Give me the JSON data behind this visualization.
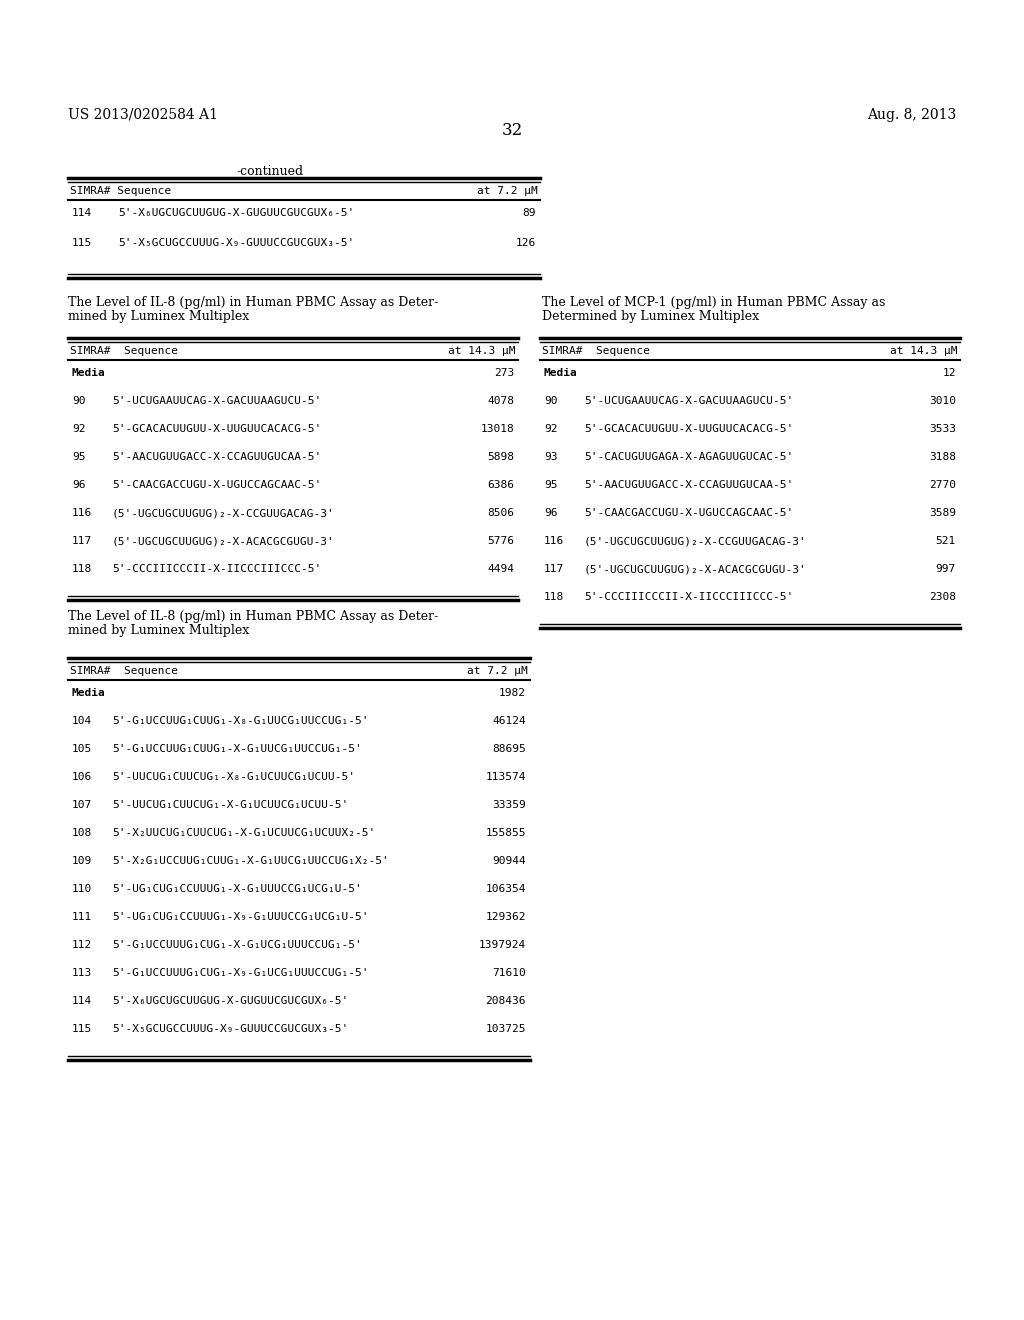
{
  "header_left": "US 2013/0202584 A1",
  "header_right": "Aug. 8, 2013",
  "page_number": "32",
  "background_color": "#ffffff",
  "continued_label": "-continued",
  "table1_rows": [
    [
      "114",
      "5'-X₆UGCUGCUUGUG-X-GUGUUCGUCGUX₆-5'",
      "89"
    ],
    [
      "115",
      "5'-X₅GCUGCCUUUG-X₉-GUUUCCGUCGUX₃-5'",
      "126"
    ]
  ],
  "section1_left_title1": "The Level of IL-8 (pg/ml) in Human PBMC Assay as Deter-",
  "section1_left_title2": "mined by Luminex Multiplex",
  "section1_right_title1": "The Level of MCP-1 (pg/ml) in Human PBMC Assay as",
  "section1_right_title2": "Determined by Luminex Multiplex",
  "table2_left_rows": [
    [
      "Media",
      "",
      "273"
    ],
    [
      "90",
      "5'-UCUGAAUUCAG-X-GACUUAAGUCU-5'",
      "4078"
    ],
    [
      "92",
      "5'-GCACACUUGUU-X-UUGUUCACACG-5'",
      "13018"
    ],
    [
      "95",
      "5'-AACUGUUGACC-X-CCAGUUGUCAA-5'",
      "5898"
    ],
    [
      "96",
      "5'-CAACGACCUGU-X-UGUCCAGCAAC-5'",
      "6386"
    ],
    [
      "116",
      "(5'-UGCUGCUUGUG)₂-X-CCGUUGACAG-3'",
      "8506"
    ],
    [
      "117",
      "(5'-UGCUGCUUGUG)₂-X-ACACGCGUGU-3'",
      "5776"
    ],
    [
      "118",
      "5'-CCCIIICCCII-X-IICCCIIICCC-5'",
      "4494"
    ]
  ],
  "table2_right_rows": [
    [
      "Media",
      "",
      "12"
    ],
    [
      "90",
      "5'-UCUGAAUUCAG-X-GACUUAAGUCU-5'",
      "3010"
    ],
    [
      "92",
      "5'-GCACACUUGUU-X-UUGUUCACACG-5'",
      "3533"
    ],
    [
      "93",
      "5'-CACUGUUGAGA-X-AGAGUUGUCAC-5'",
      "3188"
    ],
    [
      "95",
      "5'-AACUGUUGACC-X-CCAGUUGUCAA-5'",
      "2770"
    ],
    [
      "96",
      "5'-CAACGACCUGU-X-UGUCCAGCAAC-5'",
      "3589"
    ],
    [
      "116",
      "(5'-UGCUGCUUGUG)₂-X-CCGUUGACAG-3'",
      "521"
    ],
    [
      "117",
      "(5'-UGCUGCUUGUG)₂-X-ACACGCGUGU-3'",
      "997"
    ],
    [
      "118",
      "5'-CCCIIICCCII-X-IICCCIIICCC-5'",
      "2308"
    ]
  ],
  "section2_title1": "The Level of IL-8 (pg/ml) in Human PBMC Assay as Deter-",
  "section2_title2": "mined by Luminex Multiplex",
  "table3_rows": [
    [
      "Media",
      "",
      "1982"
    ],
    [
      "104",
      "5'-G₁UCCUUG₁CUUG₁-X₈-G₁UUCG₁UUCCUG₁-5'",
      "46124"
    ],
    [
      "105",
      "5'-G₁UCCUUG₁CUUG₁-X-G₁UUCG₁UUCCUG₁-5'",
      "88695"
    ],
    [
      "106",
      "5'-UUCUG₁CUUCUG₁-X₈-G₁UCUUCG₁UCUU-5'",
      "113574"
    ],
    [
      "107",
      "5'-UUCUG₁CUUCUG₁-X-G₁UCUUCG₁UCUU-5'",
      "33359"
    ],
    [
      "108",
      "5'-X₂UUCUG₁CUUCUG₁-X-G₁UCUUCG₁UCUUX₂-5'",
      "155855"
    ],
    [
      "109",
      "5'-X₂G₁UCCUUG₁CUUG₁-X-G₁UUCG₁UUCCUG₁X₂-5'",
      "90944"
    ],
    [
      "110",
      "5'-UG₁CUG₁CCUUUG₁-X-G₁UUUCCG₁UCG₁U-5'",
      "106354"
    ],
    [
      "111",
      "5'-UG₁CUG₁CCUUUG₁-X₉-G₁UUUCCG₁UCG₁U-5'",
      "129362"
    ],
    [
      "112",
      "5'-G₁UCCUUUG₁CUG₁-X-G₁UCG₁UUUCCUG₁-5'",
      "1397924"
    ],
    [
      "113",
      "5'-G₁UCCUUUG₁CUG₁-X₉-G₁UCG₁UUUCCUG₁-5'",
      "71610"
    ],
    [
      "114",
      "5'-X₆UGCUGCUUGUG-X-GUGUUCGUCGUX₆-5'",
      "208436"
    ],
    [
      "115",
      "5'-X₅GCUGCCUUUG-X₉-GUUUCCGUCGUX₃-5'",
      "103725"
    ]
  ]
}
